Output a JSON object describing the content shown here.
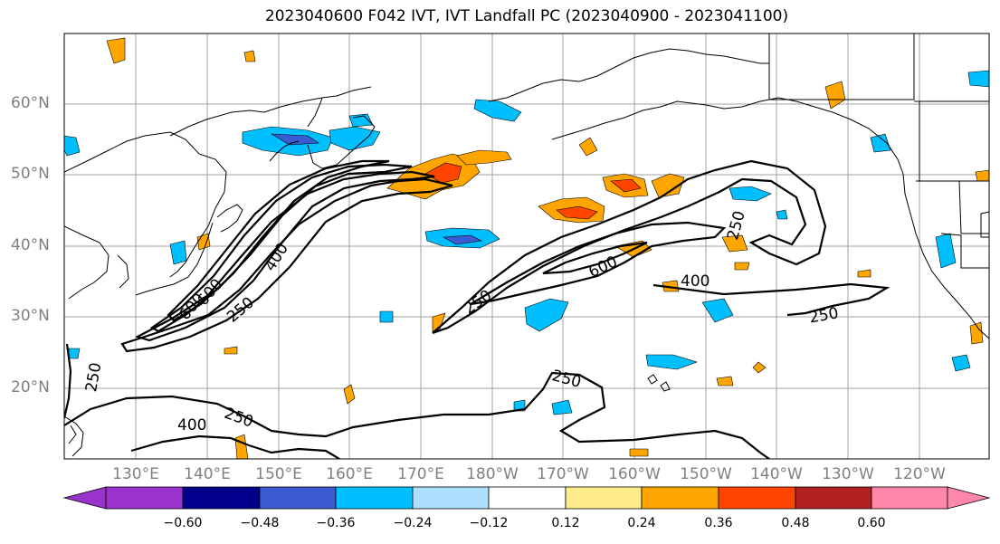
{
  "title": "2023040600 F042 IVT, IVT Landfall PC (2023040900 - 2023041100)",
  "lat_labels": [
    "60°N",
    "50°N",
    "40°N",
    "30°N",
    "20°N"
  ],
  "lon_labels": [
    "130°E",
    "140°E",
    "150°E",
    "160°E",
    "170°E",
    "180°W",
    "170°W",
    "160°W",
    "150°W",
    "140°W",
    "130°W",
    "120°W"
  ],
  "contour_labels": {
    "c250_a": "250",
    "c400_a": "400",
    "c600_a": "600",
    "c250_b": "250",
    "c250_c": "250",
    "c400_b": "400",
    "c600_b": "600",
    "c250_d": "250",
    "c250_e": "250",
    "c400_c": "400",
    "c250_f": "250",
    "c250_g": "250",
    "c600_c": "600"
  },
  "colorbar": {
    "colors": [
      "#9933CC",
      "#00008B",
      "#3A5BD1",
      "#00BFFF",
      "#ADDFFF",
      "#FFFFFF",
      "#FFEC8B",
      "#FFA500",
      "#FF4500",
      "#B22222",
      "#FF88AA"
    ],
    "tick_labels": [
      "−0.60",
      "−0.48",
      "−0.36",
      "−0.24",
      "−0.12",
      "0.12",
      "0.24",
      "0.36",
      "0.48",
      "0.60"
    ]
  },
  "colors": {
    "grid": "#a0a0a0",
    "coast": "#000000",
    "contour": "#000000",
    "tick_text": "#808080"
  }
}
